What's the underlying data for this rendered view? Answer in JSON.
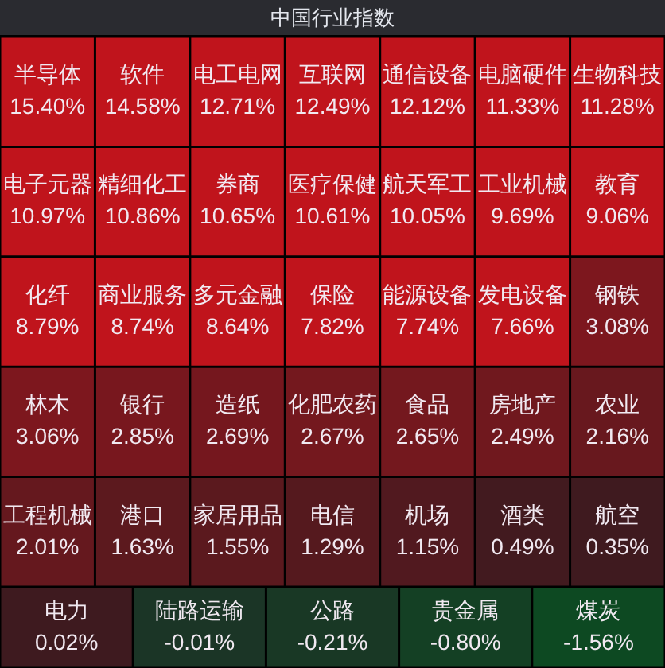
{
  "chart_data": {
    "type": "other",
    "title": "中国行业指数",
    "categories": [
      "半导体",
      "软件",
      "电工电网",
      "互联网",
      "通信设备",
      "电脑硬件",
      "生物科技",
      "电子元器",
      "精细化工",
      "券商",
      "医疗保健",
      "航天军工",
      "工业机械",
      "教育",
      "化纤",
      "商业服务",
      "多元金融",
      "保险",
      "能源设备",
      "发电设备",
      "钢铁",
      "林木",
      "银行",
      "造纸",
      "化肥农药",
      "食品",
      "房地产",
      "农业",
      "工程机械",
      "港口",
      "家居用品",
      "电信",
      "机场",
      "酒类",
      "航空",
      "电力",
      "陆路运输",
      "公路",
      "贵金属",
      "煤炭"
    ],
    "values": [
      15.4,
      14.58,
      12.71,
      12.49,
      12.12,
      11.33,
      11.28,
      10.97,
      10.86,
      10.65,
      10.61,
      10.05,
      9.69,
      9.06,
      8.79,
      8.74,
      8.64,
      7.82,
      7.74,
      7.66,
      3.08,
      3.06,
      2.85,
      2.69,
      2.67,
      2.65,
      2.49,
      2.16,
      2.01,
      1.63,
      1.55,
      1.29,
      1.15,
      0.49,
      0.35,
      0.02,
      -0.01,
      -0.21,
      -0.8,
      -1.56
    ],
    "value_labels": [
      "15.40%",
      "14.58%",
      "12.71%",
      "12.49%",
      "12.12%",
      "11.33%",
      "11.28%",
      "10.97%",
      "10.86%",
      "10.65%",
      "10.61%",
      "10.05%",
      "9.69%",
      "9.06%",
      "8.79%",
      "8.74%",
      "8.64%",
      "7.82%",
      "7.74%",
      "7.66%",
      "3.08%",
      "3.06%",
      "2.85%",
      "2.69%",
      "2.67%",
      "2.65%",
      "2.49%",
      "2.16%",
      "2.01%",
      "1.63%",
      "1.55%",
      "1.29%",
      "1.15%",
      "0.49%",
      "0.35%",
      "0.02%",
      "-0.01%",
      "-0.21%",
      "-0.80%",
      "-1.56%"
    ]
  }
}
